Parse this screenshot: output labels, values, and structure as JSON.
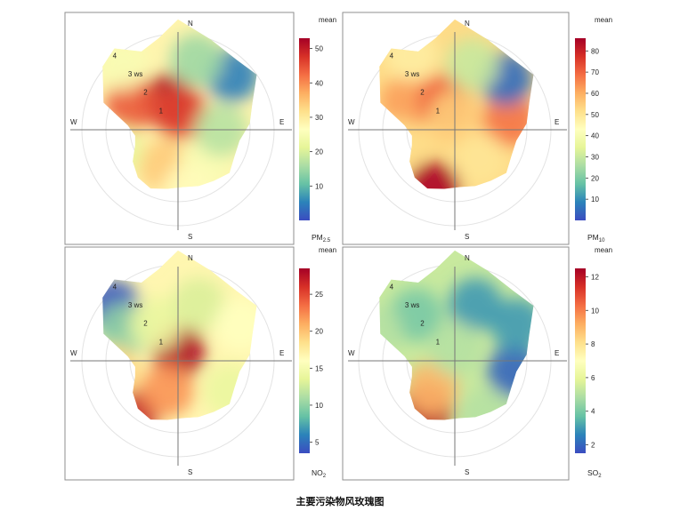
{
  "caption": "主要污染物风玫瑰图",
  "colors": [
    "#3b4cc0",
    "#2b83ba",
    "#66c2a5",
    "#abdda4",
    "#e6f598",
    "#ffffbf",
    "#fee08b",
    "#fdae61",
    "#f46d43",
    "#d73027",
    "#a50026"
  ],
  "chart_data": [
    {
      "type": "heatmap",
      "subtype": "polar_bivariate_plot",
      "pollutant_label": "PM",
      "pollutant_sub": "2.5",
      "legend_title": "mean",
      "legend_ticks": [
        10,
        20,
        30,
        40,
        50
      ],
      "range": [
        0,
        53
      ],
      "direction_labels": [
        "N",
        "E",
        "S",
        "W"
      ],
      "ring_labels": [
        "1",
        "2",
        "3 ws",
        "4"
      ],
      "hotspots": [
        {
          "angle": 340,
          "ws": 1.3,
          "value": 52
        },
        {
          "angle": 300,
          "ws": 2.2,
          "value": 44
        },
        {
          "angle": 10,
          "ws": 0.7,
          "value": 46
        },
        {
          "angle": 200,
          "ws": 1.6,
          "value": 34
        },
        {
          "angle": 140,
          "ws": 1.8,
          "value": 25
        },
        {
          "angle": 90,
          "ws": 1.8,
          "value": 17
        },
        {
          "angle": 45,
          "ws": 3.2,
          "value": 5
        },
        {
          "angle": 15,
          "ws": 3.0,
          "value": 15
        },
        {
          "angle": 320,
          "ws": 3.6,
          "value": 25
        },
        {
          "angle": 250,
          "ws": 2.7,
          "value": 22
        },
        {
          "angle": 170,
          "ws": 2.6,
          "value": 27
        }
      ]
    },
    {
      "type": "heatmap",
      "subtype": "polar_bivariate_plot",
      "pollutant_label": "PM",
      "pollutant_sub": "10",
      "legend_title": "mean",
      "legend_ticks": [
        10,
        20,
        30,
        40,
        50,
        60,
        70,
        80
      ],
      "range": [
        0,
        86
      ],
      "direction_labels": [
        "N",
        "E",
        "S",
        "W"
      ],
      "ring_labels": [
        "1",
        "2",
        "3 ws",
        "4"
      ],
      "hotspots": [
        {
          "angle": 200,
          "ws": 2.6,
          "value": 85
        },
        {
          "angle": 300,
          "ws": 2.3,
          "value": 62
        },
        {
          "angle": 340,
          "ws": 1.3,
          "value": 70
        },
        {
          "angle": 80,
          "ws": 2.3,
          "value": 68
        },
        {
          "angle": 0,
          "ws": 0.5,
          "value": 55
        },
        {
          "angle": 140,
          "ws": 1.6,
          "value": 50
        },
        {
          "angle": 45,
          "ws": 3.0,
          "value": 5
        },
        {
          "angle": 15,
          "ws": 2.8,
          "value": 30
        },
        {
          "angle": 330,
          "ws": 3.6,
          "value": 48
        },
        {
          "angle": 255,
          "ws": 2.5,
          "value": 52
        }
      ]
    },
    {
      "type": "heatmap",
      "subtype": "polar_bivariate_plot",
      "pollutant_label": "NO",
      "pollutant_sub": "2",
      "legend_title": "mean",
      "legend_ticks": [
        5,
        10,
        15,
        20,
        25
      ],
      "range": [
        3.5,
        28.5
      ],
      "direction_labels": [
        "N",
        "E",
        "S",
        "W"
      ],
      "ring_labels": [
        "1",
        "2",
        "3 ws",
        "4"
      ],
      "hotspots": [
        {
          "angle": 5,
          "ws": 0.4,
          "value": 28
        },
        {
          "angle": 220,
          "ws": 3.0,
          "value": 27
        },
        {
          "angle": 200,
          "ws": 1.3,
          "value": 22
        },
        {
          "angle": 310,
          "ws": 3.5,
          "value": 4
        },
        {
          "angle": 300,
          "ws": 2.6,
          "value": 10
        },
        {
          "angle": 330,
          "ws": 1.8,
          "value": 14
        },
        {
          "angle": 20,
          "ws": 2.5,
          "value": 13
        },
        {
          "angle": 60,
          "ws": 3.0,
          "value": 16
        },
        {
          "angle": 120,
          "ws": 2.5,
          "value": 14
        },
        {
          "angle": 260,
          "ws": 2.7,
          "value": 19
        }
      ]
    },
    {
      "type": "heatmap",
      "subtype": "polar_bivariate_plot",
      "pollutant_label": "SO",
      "pollutant_sub": "2",
      "legend_title": "mean",
      "legend_ticks": [
        2,
        4,
        6,
        8,
        10,
        12
      ],
      "range": [
        1.5,
        12.5
      ],
      "direction_labels": [
        "N",
        "E",
        "S",
        "W"
      ],
      "ring_labels": [
        "1",
        "2",
        "3 ws",
        "4"
      ],
      "hotspots": [
        {
          "angle": 210,
          "ws": 2.4,
          "value": 12
        },
        {
          "angle": 220,
          "ws": 1.5,
          "value": 9
        },
        {
          "angle": 100,
          "ws": 2.5,
          "value": 2
        },
        {
          "angle": 20,
          "ws": 2.5,
          "value": 3
        },
        {
          "angle": 60,
          "ws": 3.0,
          "value": 3
        },
        {
          "angle": 320,
          "ws": 2.5,
          "value": 4
        },
        {
          "angle": 290,
          "ws": 3.5,
          "value": 5
        },
        {
          "angle": 150,
          "ws": 2.6,
          "value": 5
        },
        {
          "angle": 0,
          "ws": 0.5,
          "value": 5
        }
      ]
    }
  ]
}
